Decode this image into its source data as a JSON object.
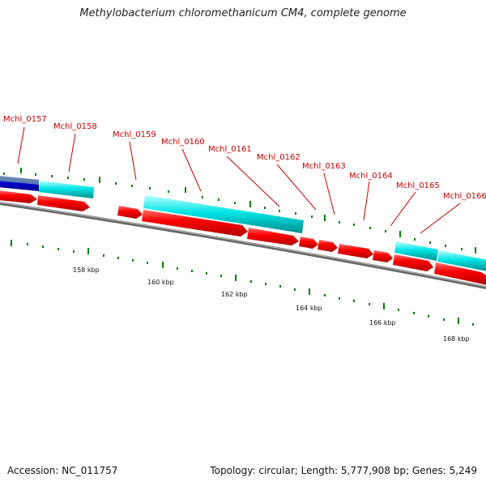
{
  "title": "Methylobacterium chloromethanicum CM4, complete genome",
  "footer": {
    "accession": "Accession: NC_011757",
    "topology": "Topology: circular; Length: 5,777,908 bp; Genes: 5,249"
  },
  "gene_labels": [
    "Mchl_0157",
    "Mchl_0158",
    "Mchl_0159",
    "Mchl_0160",
    "Mchl_0161",
    "Mchl_0162",
    "Mchl_0163",
    "Mchl_0164",
    "Mchl_0165",
    "Mchl_0166"
  ],
  "kbp_labels": [
    "158 kbp",
    "160 kbp",
    "162 kbp",
    "164 kbp",
    "166 kbp",
    "168 kbp"
  ],
  "colors": {
    "cds": "#ff0000",
    "feature_track": "#00e5e5",
    "highlight_track": "#0000cc",
    "backbone": "#777777",
    "tick": "#008000",
    "label": "#cc0000"
  }
}
